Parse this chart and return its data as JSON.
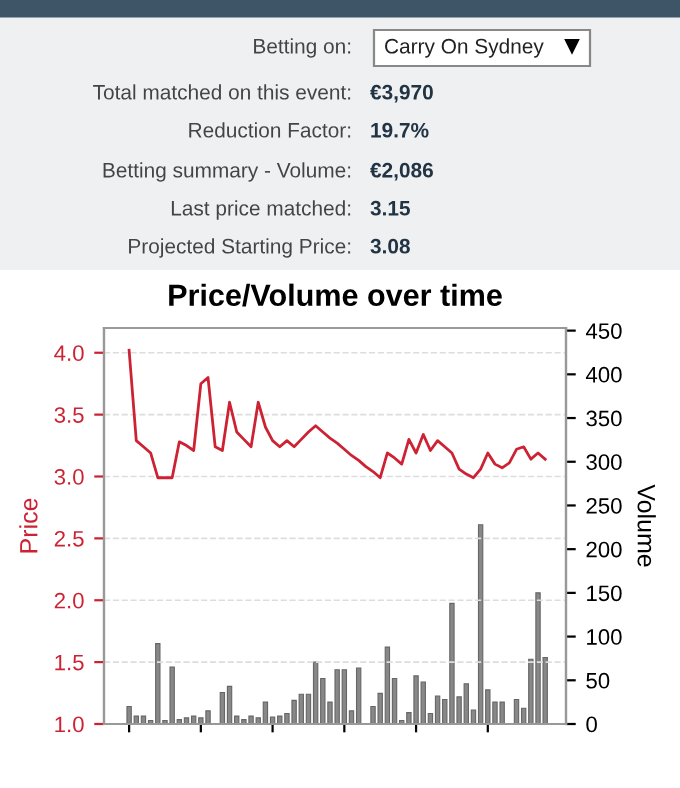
{
  "chart_data": [
    {
      "type": "other",
      "annotations": [
        "Betting on:",
        "Carry On Sydney",
        "Total matched on this event:",
        "€3,970",
        "Reduction Factor:",
        "19.7%",
        "Betting summary - Volume:",
        "€2,086",
        "Last price matched:",
        "3.15",
        "Projected Starting Price:",
        "3.08"
      ]
    },
    {
      "type": "bar",
      "title": "Price/Volume over time",
      "ylabel": "Price",
      "y2label": "Volume",
      "categories": [
        null,
        null,
        null,
        null,
        null,
        null,
        null,
        null,
        null,
        null,
        null,
        null,
        null,
        null,
        null,
        null,
        null,
        null,
        null,
        null,
        null,
        null,
        null,
        null,
        null,
        null,
        null,
        null,
        null,
        null,
        null,
        null,
        null,
        null,
        null,
        null,
        null,
        null,
        null,
        null,
        null,
        null,
        null,
        null,
        null,
        null,
        null,
        null,
        null,
        null,
        null,
        null,
        null,
        null,
        null,
        null,
        null,
        null,
        null
      ],
      "series": [
        {
          "type": "line",
          "color": "#cc2233",
          "values": [
            4.02,
            3.29,
            3.24,
            3.19,
            2.99,
            2.99,
            2.99,
            3.28,
            3.25,
            3.21,
            3.75,
            3.8,
            3.24,
            3.21,
            3.6,
            3.36,
            3.3,
            3.24,
            3.6,
            3.4,
            3.29,
            3.24,
            3.29,
            3.24,
            3.3,
            3.36,
            3.41,
            3.36,
            3.31,
            3.27,
            3.22,
            3.17,
            3.13,
            3.08,
            3.04,
            2.99,
            3.19,
            3.15,
            3.1,
            3.3,
            3.19,
            3.34,
            3.21,
            3.29,
            3.24,
            3.19,
            3.06,
            3.02,
            2.99,
            3.06,
            3.19,
            3.1,
            3.07,
            3.11,
            3.22,
            3.24,
            3.14,
            3.19,
            3.14
          ]
        },
        {
          "type": "bar",
          "axis": "y2",
          "color": "#888888",
          "values": [
            20,
            9,
            9,
            4,
            92,
            4,
            65,
            5,
            7,
            9,
            7,
            15,
            null,
            36,
            43,
            9,
            5,
            9,
            7,
            25,
            8,
            9,
            12,
            27,
            34,
            34,
            71,
            52,
            25,
            62,
            62,
            15,
            64,
            null,
            20,
            35,
            88,
            52,
            4,
            13,
            55,
            48,
            12,
            32,
            28,
            138,
            31,
            46,
            16,
            228,
            39,
            25,
            25,
            null,
            28,
            18,
            74,
            150,
            76
          ]
        }
      ],
      "ylim": [
        1.0,
        4.2
      ],
      "yticks": [
        {
          "value": 1.0,
          "label": "1.0"
        },
        {
          "value": 1.5,
          "label": "1.5"
        },
        {
          "value": 2.0,
          "label": "2.0"
        },
        {
          "value": 2.5,
          "label": "2.5"
        },
        {
          "value": 3.0,
          "label": "3.0"
        },
        {
          "value": 3.5,
          "label": "3.5"
        },
        {
          "value": 4.0,
          "label": "4.0"
        }
      ],
      "y2lim": [
        0,
        453
      ],
      "y2ticks": [
        0,
        50,
        100,
        150,
        200,
        250,
        300,
        350,
        400,
        450
      ],
      "grid": "y"
    }
  ]
}
